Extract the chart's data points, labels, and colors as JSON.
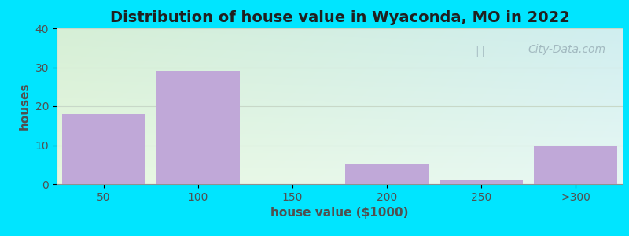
{
  "title": "Distribution of house value in Wyaconda, MO in 2022",
  "xlabel": "house value ($1000)",
  "ylabel": "houses",
  "categories": [
    "50",
    "100",
    "150",
    "200",
    "250",
    ">300"
  ],
  "values": [
    18,
    29,
    0,
    5,
    1,
    10
  ],
  "bar_color": "#c0a8d8",
  "ylim": [
    0,
    40
  ],
  "yticks": [
    0,
    10,
    20,
    30,
    40
  ],
  "background_outer": "#00e5ff",
  "grad_top_left": "#d6efd6",
  "grad_top_right": "#d0eef0",
  "grad_bot_left": "#e8f8e0",
  "grad_bot_right": "#e8f8f4",
  "watermark": "City-Data.com",
  "title_fontsize": 14,
  "label_fontsize": 11,
  "tick_fontsize": 10
}
